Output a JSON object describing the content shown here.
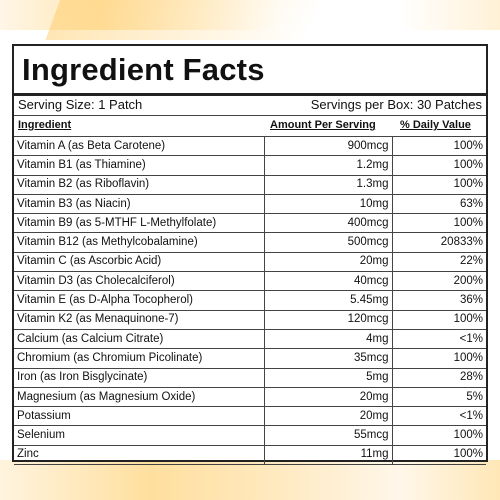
{
  "title": "Ingredient Facts",
  "serving_size": "Serving Size: 1 Patch",
  "servings_per_box": "Servings per Box: 30 Patches",
  "headers": {
    "ingredient": "Ingredient",
    "amount": "Amount Per Serving",
    "daily_value": "% Daily Value"
  },
  "rows": [
    {
      "ingredient": "Vitamin A (as Beta Carotene)",
      "amount": "900mcg",
      "dv": "100%"
    },
    {
      "ingredient": "Vitamin B1 (as Thiamine)",
      "amount": "1.2mg",
      "dv": "100%"
    },
    {
      "ingredient": "Vitamin B2 (as Riboflavin)",
      "amount": "1.3mg",
      "dv": "100%"
    },
    {
      "ingredient": "Vitamin B3 (as Niacin)",
      "amount": "10mg",
      "dv": "63%"
    },
    {
      "ingredient": "Vitamin B9 (as 5-MTHF L-Methylfolate)",
      "amount": "400mcg",
      "dv": "100%"
    },
    {
      "ingredient": "Vitamin B12 (as Methylcobalamine)",
      "amount": "500mcg",
      "dv": "20833%"
    },
    {
      "ingredient": "Vitamin C (as Ascorbic Acid)",
      "amount": "20mg",
      "dv": "22%"
    },
    {
      "ingredient": "Vitamin D3 (as Cholecalciferol)",
      "amount": "40mcg",
      "dv": "200%"
    },
    {
      "ingredient": "Vitamin E (as D-Alpha Tocopherol)",
      "amount": "5.45mg",
      "dv": "36%"
    },
    {
      "ingredient": "Vitamin K2 (as Menaquinone-7)",
      "amount": "120mcg",
      "dv": "100%"
    },
    {
      "ingredient": "Calcium (as Calcium Citrate)",
      "amount": "4mg",
      "dv": "<1%"
    },
    {
      "ingredient": "Chromium (as Chromium Picolinate)",
      "amount": "35mcg",
      "dv": "100%"
    },
    {
      "ingredient": "Iron (as Iron Bisglycinate)",
      "amount": "5mg",
      "dv": "28%"
    },
    {
      "ingredient": "Magnesium (as Magnesium Oxide)",
      "amount": "20mg",
      "dv": "5%"
    },
    {
      "ingredient": "Potassium",
      "amount": "20mg",
      "dv": "<1%"
    },
    {
      "ingredient": "Selenium",
      "amount": "55mcg",
      "dv": "100%"
    },
    {
      "ingredient": "Zinc",
      "amount": "11mg",
      "dv": "100%"
    }
  ]
}
